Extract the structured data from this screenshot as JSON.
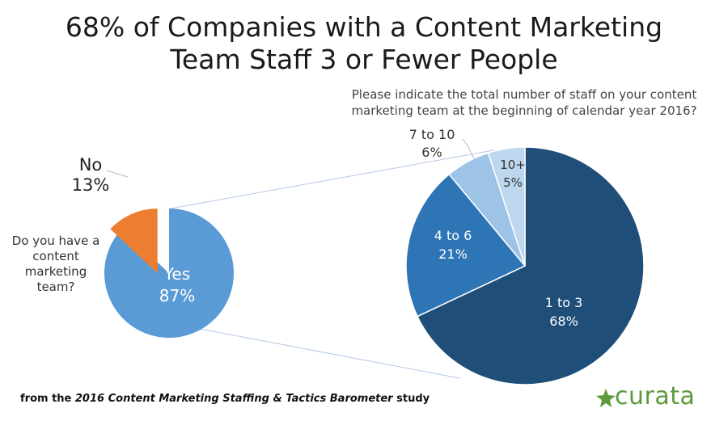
{
  "title_line1": "68% of Companies with a Content Marketing",
  "title_line2": "Team Staff 3 or Fewer People",
  "left_question": "Do you have a content marketing team?",
  "right_question": "Please indicate the total number of staff on your content marketing team at the beginning of calendar year 2016?",
  "footer": {
    "prefix": "from the ",
    "title": "2016 Content Marketing Staffing & Tactics Barometer",
    "suffix": " study"
  },
  "logo_text": "curata",
  "colors": {
    "yes": "#5b9bd5",
    "no": "#ed7d31",
    "one_to_three": "#1f4e79",
    "four_to_six": "#2e75b6",
    "seven_to_ten": "#9dc3e6",
    "ten_plus": "#bdd7ee",
    "connector": "#b4c7e7",
    "logo": "#5b9b3c"
  },
  "chart_data": [
    {
      "type": "pie",
      "question": "Do you have a content marketing team?",
      "slices": [
        {
          "label": "Yes",
          "value": 87,
          "display": "87%"
        },
        {
          "label": "No",
          "value": 13,
          "display": "13%"
        }
      ]
    },
    {
      "type": "pie",
      "question": "Please indicate the total number of staff on your content marketing team at the beginning of calendar year 2016?",
      "slices": [
        {
          "label": "1 to 3",
          "value": 68,
          "display": "68%"
        },
        {
          "label": "4 to 6",
          "value": 21,
          "display": "21%"
        },
        {
          "label": "7 to 10",
          "value": 6,
          "display": "6%"
        },
        {
          "label": "10+",
          "value": 5,
          "display": "5%"
        }
      ]
    }
  ]
}
